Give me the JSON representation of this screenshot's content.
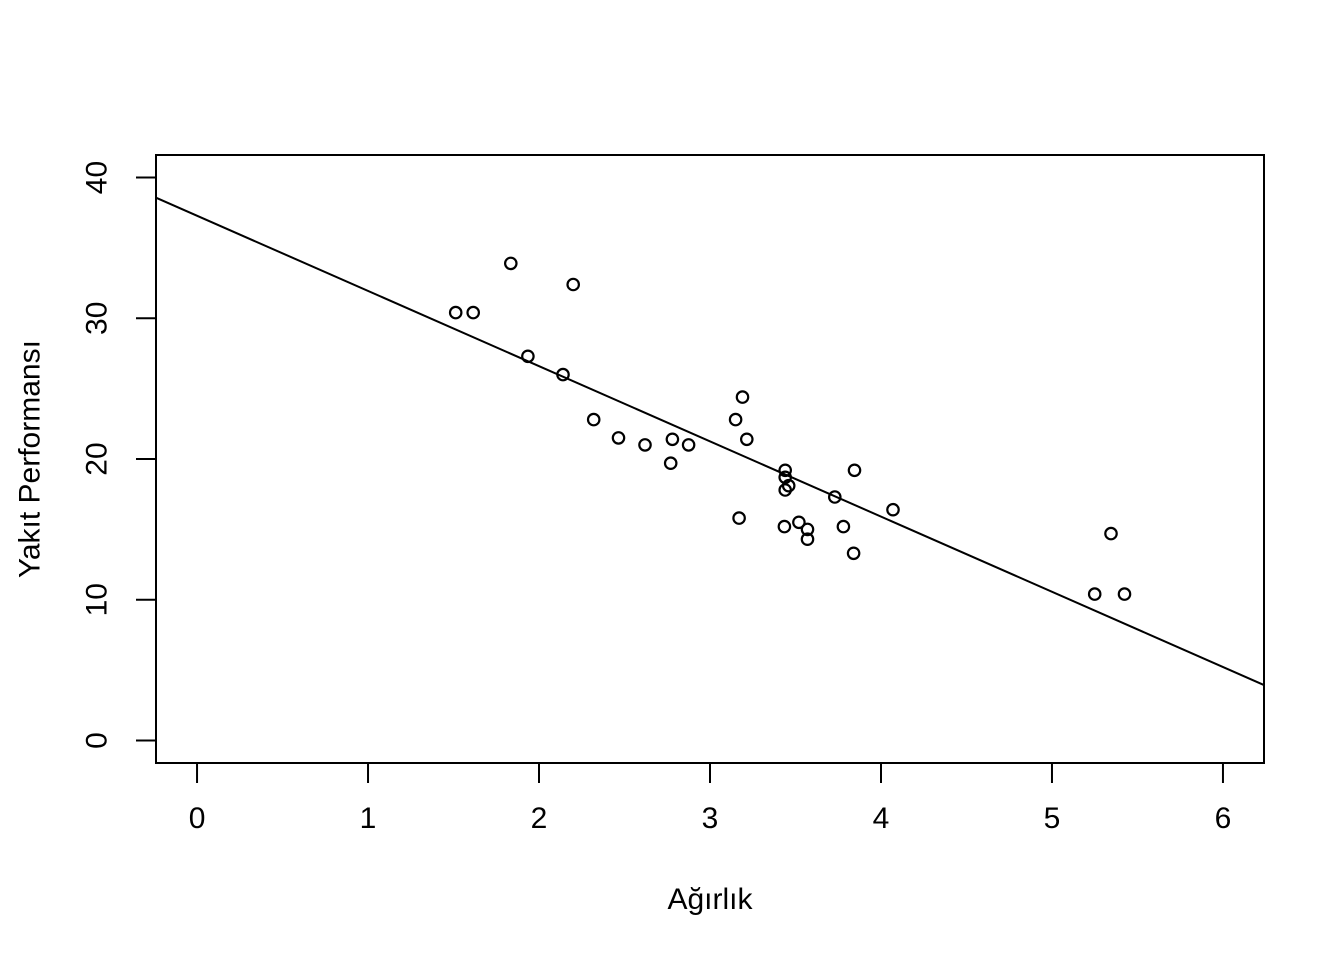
{
  "chart_data": {
    "type": "scatter",
    "title": "",
    "xlabel": "Ağırlık",
    "ylabel": "Yakıt Performansı",
    "x_ticks": [
      0,
      1,
      2,
      3,
      4,
      5,
      6
    ],
    "y_ticks": [
      0,
      10,
      20,
      30,
      40
    ],
    "xlim": [
      -0.24,
      6.24
    ],
    "ylim": [
      -1.6,
      41.6
    ],
    "grid": false,
    "legend": false,
    "marker": "open-circle",
    "colors": {
      "background": "#ffffff",
      "foreground": "#000000"
    },
    "points": [
      {
        "x": 2.62,
        "y": 21.0
      },
      {
        "x": 2.875,
        "y": 21.0
      },
      {
        "x": 2.32,
        "y": 22.8
      },
      {
        "x": 3.215,
        "y": 21.4
      },
      {
        "x": 3.44,
        "y": 18.7
      },
      {
        "x": 3.46,
        "y": 18.1
      },
      {
        "x": 3.57,
        "y": 14.3
      },
      {
        "x": 3.19,
        "y": 24.4
      },
      {
        "x": 3.15,
        "y": 22.8
      },
      {
        "x": 3.44,
        "y": 19.2
      },
      {
        "x": 3.44,
        "y": 17.8
      },
      {
        "x": 4.07,
        "y": 16.4
      },
      {
        "x": 3.73,
        "y": 17.3
      },
      {
        "x": 3.78,
        "y": 15.2
      },
      {
        "x": 5.25,
        "y": 10.4
      },
      {
        "x": 5.424,
        "y": 10.4
      },
      {
        "x": 5.345,
        "y": 14.7
      },
      {
        "x": 2.2,
        "y": 32.4
      },
      {
        "x": 1.615,
        "y": 30.4
      },
      {
        "x": 1.835,
        "y": 33.9
      },
      {
        "x": 2.465,
        "y": 21.5
      },
      {
        "x": 3.52,
        "y": 15.5
      },
      {
        "x": 3.435,
        "y": 15.2
      },
      {
        "x": 3.84,
        "y": 13.3
      },
      {
        "x": 3.845,
        "y": 19.2
      },
      {
        "x": 1.935,
        "y": 27.3
      },
      {
        "x": 2.14,
        "y": 26.0
      },
      {
        "x": 1.513,
        "y": 30.4
      },
      {
        "x": 3.17,
        "y": 15.8
      },
      {
        "x": 2.77,
        "y": 19.7
      },
      {
        "x": 3.57,
        "y": 15.0
      },
      {
        "x": 2.78,
        "y": 21.4
      }
    ],
    "fit_line": {
      "type": "linear-regression",
      "intercept": 37.285,
      "slope": -5.344
    }
  }
}
